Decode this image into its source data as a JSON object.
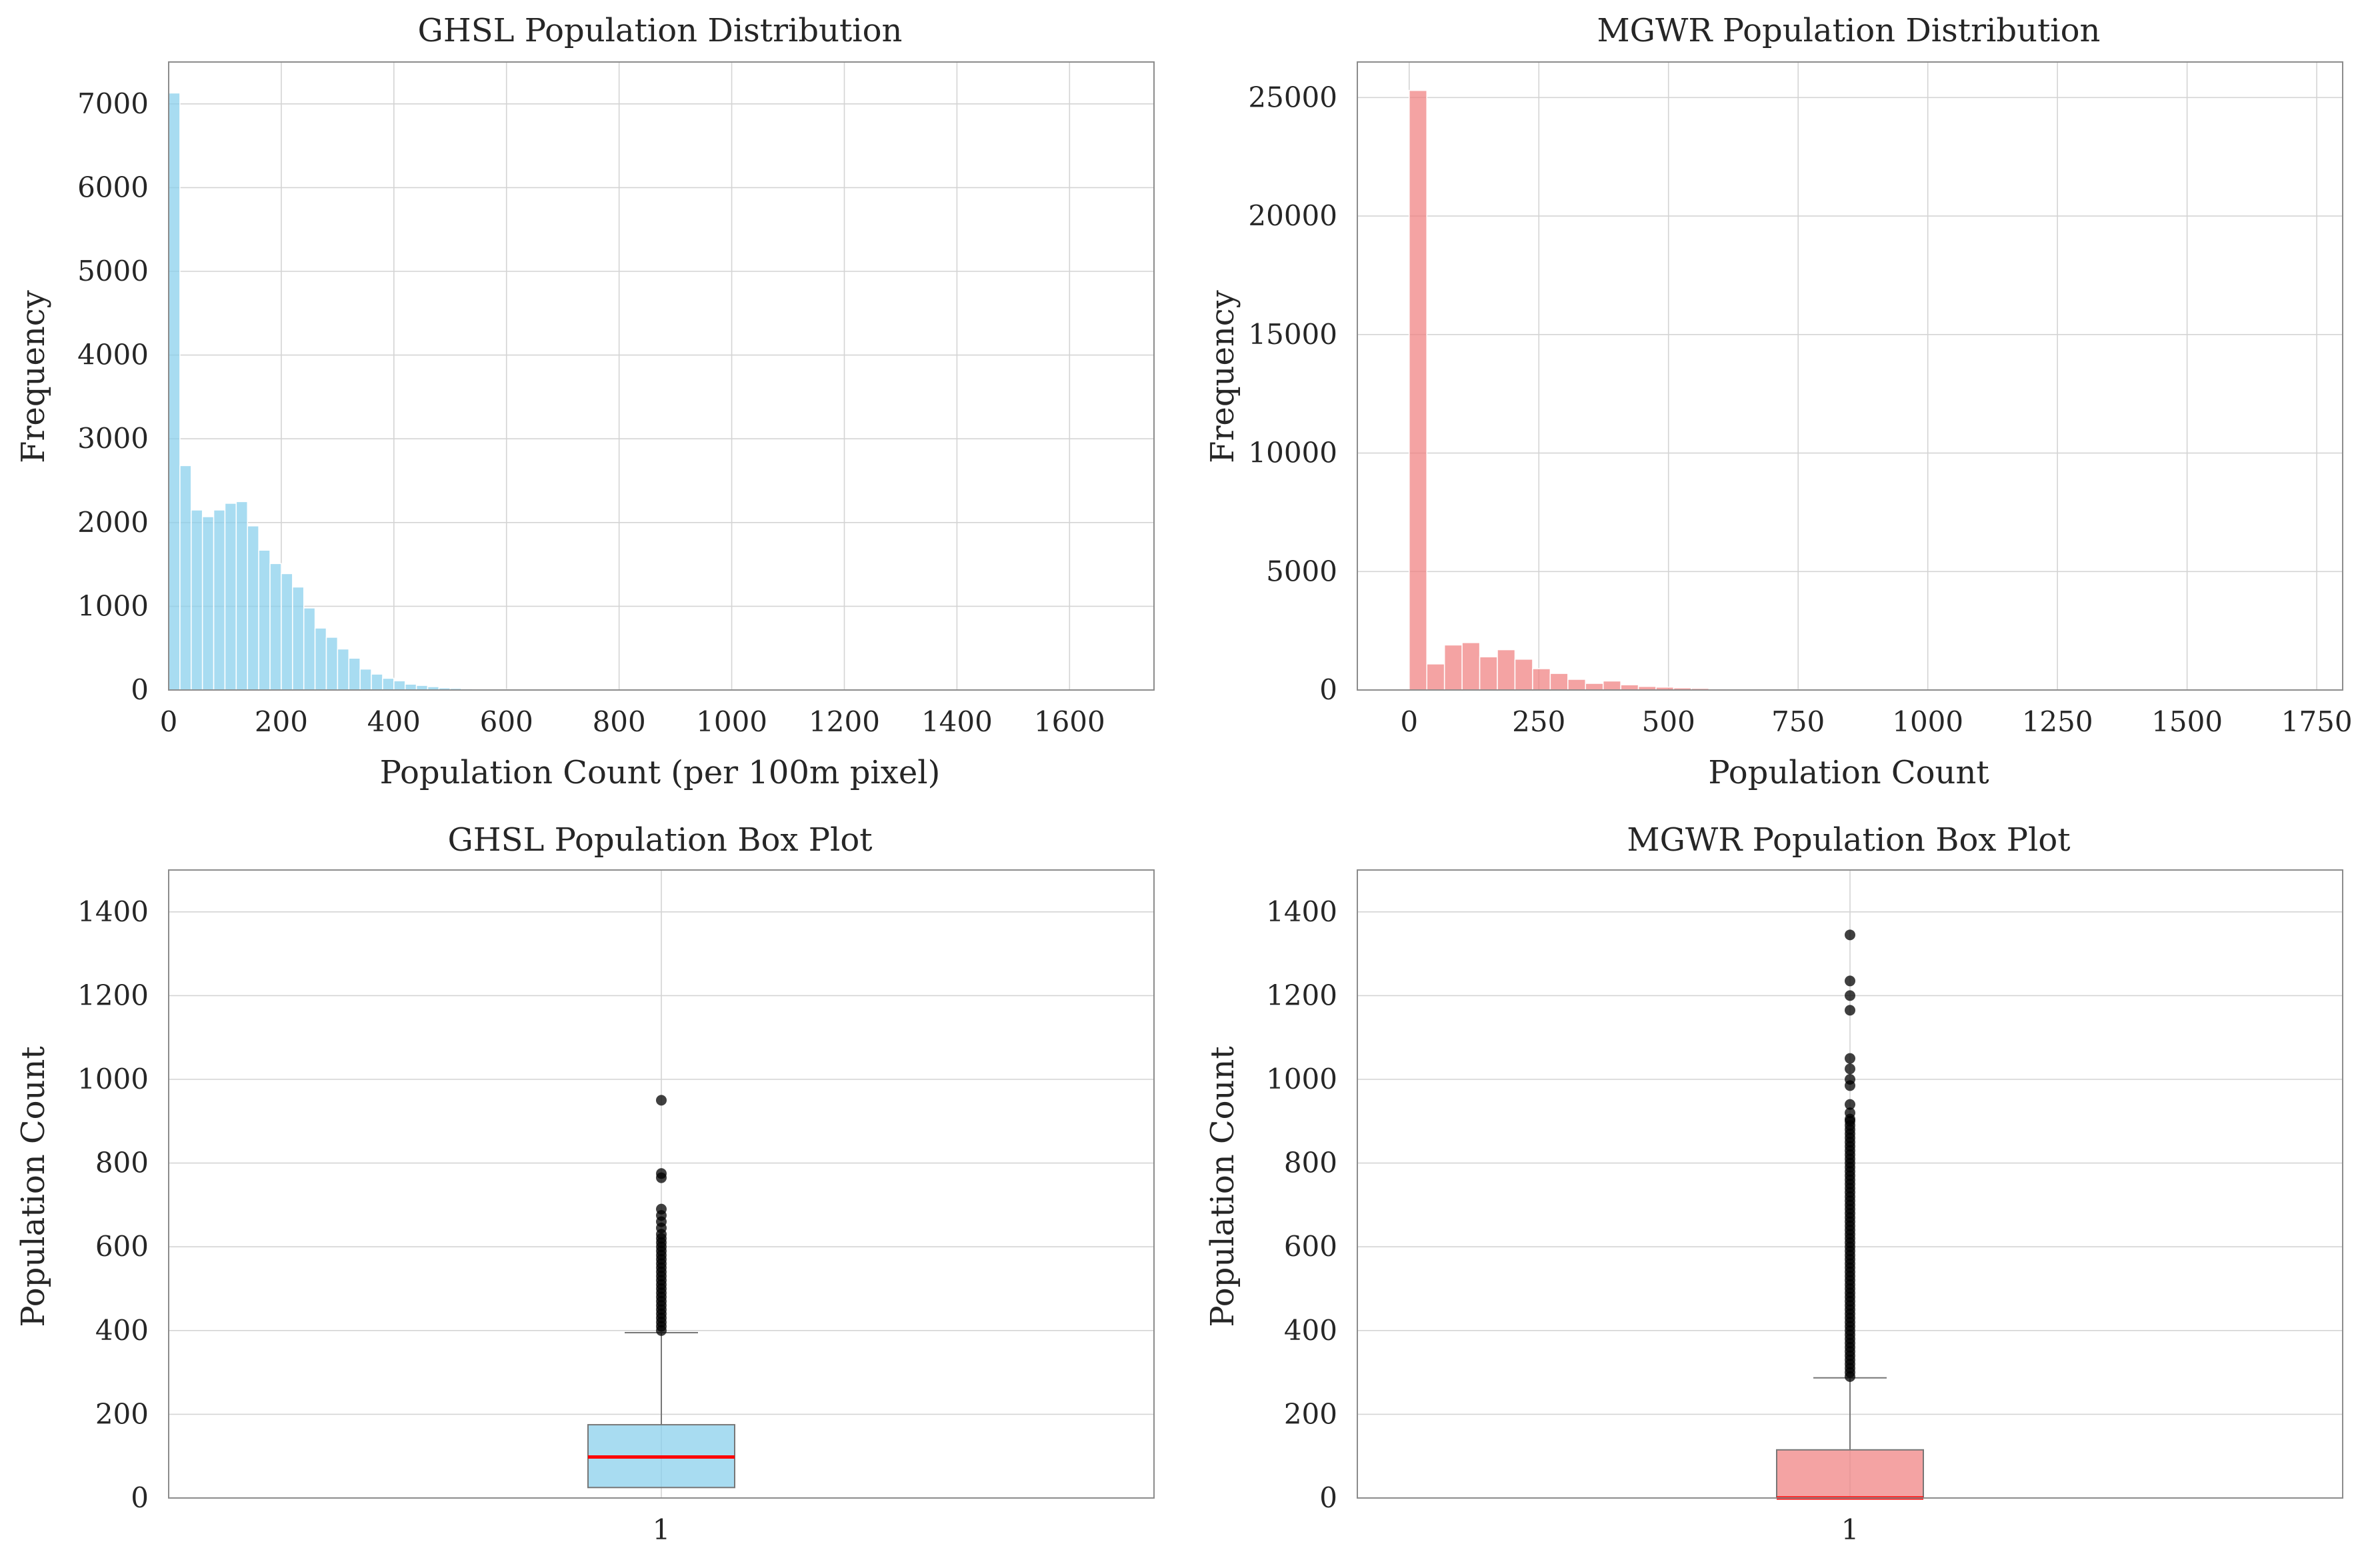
{
  "chart_data": [
    {
      "type": "bar",
      "subtype": "histogram",
      "title": "GHSL Population Distribution",
      "xlabel": "Population Count (per 100m pixel)",
      "ylabel": "Frequency",
      "color": "#87ceeb",
      "bin_width": 20,
      "bin_start": 0,
      "xlim": [
        0,
        1750
      ],
      "ylim": [
        0,
        7500
      ],
      "xticks": [
        0,
        200,
        400,
        600,
        800,
        1000,
        1200,
        1400,
        1600
      ],
      "yticks": [
        0,
        1000,
        2000,
        3000,
        4000,
        5000,
        6000,
        7000
      ],
      "values": [
        7130,
        2680,
        2150,
        2070,
        2150,
        2230,
        2250,
        1960,
        1670,
        1510,
        1390,
        1230,
        980,
        740,
        630,
        490,
        380,
        250,
        190,
        140,
        110,
        70,
        55,
        40,
        25,
        20,
        15,
        10,
        8,
        6,
        5,
        4,
        3,
        3,
        2,
        2,
        2,
        1,
        1,
        1,
        1,
        1,
        1,
        1,
        1,
        0,
        0,
        1
      ],
      "grid": true
    },
    {
      "type": "bar",
      "subtype": "histogram",
      "title": "MGWR Population Distribution",
      "xlabel": "Population Count",
      "ylabel": "Frequency",
      "color": "#f08080",
      "bin_width": 34,
      "bin_start": 0,
      "xlim": [
        -100,
        1800
      ],
      "ylim": [
        0,
        26500
      ],
      "xticks": [
        0,
        250,
        500,
        750,
        1000,
        1250,
        1500,
        1750
      ],
      "yticks": [
        0,
        5000,
        10000,
        15000,
        20000,
        25000
      ],
      "values": [
        25300,
        1100,
        1900,
        2000,
        1400,
        1700,
        1300,
        900,
        700,
        450,
        280,
        380,
        220,
        150,
        120,
        90,
        70,
        50,
        40,
        30,
        25,
        20,
        15,
        12,
        10,
        8,
        6,
        5,
        4,
        3,
        3,
        2,
        2,
        2,
        1,
        1,
        1,
        1,
        1,
        1
      ],
      "grid": true
    },
    {
      "type": "box",
      "title": "GHSL Population Box Plot",
      "xlabel": "",
      "ylabel": "Population Count",
      "category": "1",
      "box_color": "#87ceeb",
      "median_color": "#ff0000",
      "ylim": [
        0,
        1500
      ],
      "yticks": [
        0,
        200,
        400,
        600,
        800,
        1000,
        1200,
        1400
      ],
      "q1": 25,
      "median": 98,
      "q3": 175,
      "whisker_low": 0,
      "whisker_high": 395,
      "outliers": [
        400,
        410,
        420,
        430,
        440,
        450,
        460,
        470,
        480,
        490,
        500,
        510,
        520,
        530,
        540,
        550,
        560,
        570,
        580,
        590,
        600,
        610,
        620,
        630,
        645,
        660,
        675,
        690,
        765,
        775,
        950
      ],
      "grid": true
    },
    {
      "type": "box",
      "title": "MGWR Population Box Plot",
      "xlabel": "",
      "ylabel": "Population Count",
      "category": "1",
      "box_color": "#f08080",
      "median_color": "#ff0000",
      "ylim": [
        0,
        1500
      ],
      "yticks": [
        0,
        200,
        400,
        600,
        800,
        1000,
        1200,
        1400
      ],
      "q1": 0,
      "median": 0,
      "q3": 115,
      "whisker_low": 0,
      "whisker_high": 287,
      "outliers": [
        290,
        300,
        310,
        320,
        330,
        340,
        350,
        360,
        370,
        380,
        390,
        400,
        410,
        420,
        430,
        440,
        450,
        460,
        470,
        480,
        490,
        500,
        510,
        520,
        530,
        540,
        550,
        560,
        570,
        580,
        590,
        600,
        610,
        620,
        630,
        640,
        650,
        660,
        670,
        680,
        690,
        700,
        710,
        720,
        730,
        740,
        750,
        760,
        770,
        780,
        790,
        800,
        810,
        820,
        830,
        840,
        850,
        860,
        870,
        880,
        890,
        900,
        905,
        920,
        940,
        985,
        1000,
        1025,
        1050,
        1165,
        1200,
        1235,
        1345
      ],
      "grid": true
    }
  ]
}
